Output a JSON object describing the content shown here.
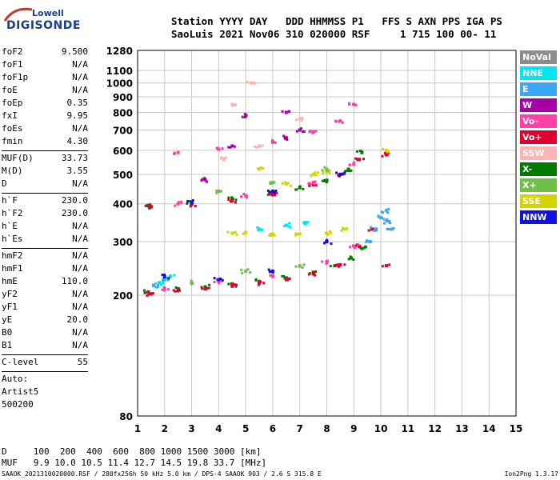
{
  "logo": {
    "line1": "Lowell",
    "line2": "DIGISONDE"
  },
  "header": {
    "line1": "Station YYYY DAY   DDD HHMMSS P1   FFS S AXN PPS IGA PS",
    "line2": "SaoLuis 2021 Nov06 310 020000 RSF     1 715 100 00- 11"
  },
  "params": [
    {
      "name": "foF2",
      "value": "9.500"
    },
    {
      "name": "foF1",
      "value": "N/A"
    },
    {
      "name": "foF1p",
      "value": "N/A"
    },
    {
      "name": "foE",
      "value": "N/A"
    },
    {
      "name": "foEp",
      "value": "0.35"
    },
    {
      "name": "fxI",
      "value": "9.95"
    },
    {
      "name": "foEs",
      "value": "N/A"
    },
    {
      "name": "fmin",
      "value": "4.30"
    },
    {
      "name": "MUF(D)",
      "value": "33.73"
    },
    {
      "name": "M(D)",
      "value": "3.55"
    },
    {
      "name": "D",
      "value": "N/A"
    },
    {
      "name": "h`F",
      "value": "230.0"
    },
    {
      "name": "h`F2",
      "value": "230.0"
    },
    {
      "name": "h`E",
      "value": "N/A"
    },
    {
      "name": "h`Es",
      "value": "N/A"
    },
    {
      "name": "hmF2",
      "value": "N/A"
    },
    {
      "name": "hmF1",
      "value": "N/A"
    },
    {
      "name": "hmE",
      "value": "110.0"
    },
    {
      "name": "yF2",
      "value": "N/A"
    },
    {
      "name": "yF1",
      "value": "N/A"
    },
    {
      "name": "yE",
      "value": "20.0"
    },
    {
      "name": "B0",
      "value": "N/A"
    },
    {
      "name": "B1",
      "value": "N/A"
    },
    {
      "name": "C-level",
      "value": "55"
    }
  ],
  "extra_lines": [
    "Auto:",
    "Artist5",
    "500200"
  ],
  "legend": [
    {
      "label": "NoVal",
      "color": "#8c8c8c"
    },
    {
      "label": "NNE",
      "color": "#00e5ee"
    },
    {
      "label": "E",
      "color": "#3ba8f5"
    },
    {
      "label": "W",
      "color": "#a600a6"
    },
    {
      "label": "Vo-",
      "color": "#ff3fa5"
    },
    {
      "label": "Vo+",
      "color": "#e00030"
    },
    {
      "label": "SSW",
      "color": "#ffb3b3"
    },
    {
      "label": "X-",
      "color": "#007a00"
    },
    {
      "label": "X+",
      "color": "#6fbf4a"
    },
    {
      "label": "SSE",
      "color": "#d4d400"
    },
    {
      "label": "NNW",
      "color": "#1010e0"
    }
  ],
  "footer": {
    "line1": "D     100  200  400  600  800 1000 1500 3000 [km]",
    "line2": "MUF   9.9 10.0 10.5 11.4 12.7 14.5 19.8 33.7 [MHz]",
    "left": "SAAOK_2021310020000.RSF / 280fx256h 50 kHz 5.0 km / DPS-4 SAAOK 903 / 2.6 S 315.8 E",
    "right": "Ion2Png 1.3.17"
  },
  "chart_data": {
    "type": "scatter",
    "xlabel": "",
    "ylabel": "",
    "xlim": [
      1,
      15
    ],
    "ylim": [
      80,
      1280
    ],
    "y_scale": "log",
    "x_ticks": [
      1,
      2,
      3,
      4,
      5,
      6,
      7,
      8,
      9,
      10,
      11,
      12,
      13,
      14,
      15
    ],
    "y_ticks": [
      80,
      200,
      300,
      400,
      500,
      600,
      700,
      800,
      900,
      1000,
      1100,
      1280
    ],
    "grid": true,
    "series": [
      {
        "name": "X-",
        "color": "#007a00",
        "points": [
          [
            1.4,
            205
          ],
          [
            2.5,
            210
          ],
          [
            3.5,
            213
          ],
          [
            4.5,
            218
          ],
          [
            5.5,
            222
          ],
          [
            6.5,
            228
          ],
          [
            7.5,
            238
          ],
          [
            8.3,
            250
          ],
          [
            8.9,
            265
          ],
          [
            9.3,
            285
          ],
          [
            1.4,
            395
          ],
          [
            3,
            402
          ],
          [
            4.5,
            415
          ],
          [
            6,
            433
          ],
          [
            7,
            452
          ],
          [
            8,
            478
          ],
          [
            8.8,
            520
          ],
          [
            9.3,
            590
          ]
        ]
      },
      {
        "name": "Vo+",
        "color": "#e00030",
        "points": [
          [
            1.5,
            202
          ],
          [
            2.5,
            207
          ],
          [
            3.5,
            210
          ],
          [
            4.5,
            214
          ],
          [
            5.5,
            219
          ],
          [
            6.5,
            225
          ],
          [
            7.5,
            235
          ],
          [
            8.5,
            252
          ],
          [
            9.2,
            290
          ],
          [
            9.7,
            330
          ],
          [
            1.5,
            392
          ],
          [
            3,
            398
          ],
          [
            4.5,
            410
          ],
          [
            6,
            428
          ],
          [
            7.5,
            462
          ],
          [
            8.5,
            500
          ],
          [
            9.2,
            560
          ],
          [
            10.2,
            250
          ],
          [
            10.2,
            580
          ]
        ]
      },
      {
        "name": "Vo-",
        "color": "#ff3fa5",
        "points": [
          [
            2,
            210
          ],
          [
            4,
            222
          ],
          [
            6,
            232
          ],
          [
            8,
            258
          ],
          [
            9,
            290
          ],
          [
            2.5,
            400
          ],
          [
            5,
            425
          ],
          [
            7.5,
            470
          ],
          [
            9,
            540
          ],
          [
            2.5,
            590
          ],
          [
            4,
            605
          ],
          [
            6,
            640
          ],
          [
            7.5,
            690
          ],
          [
            8.5,
            750
          ],
          [
            9,
            850
          ]
        ]
      },
      {
        "name": "E",
        "color": "#3ba8f5",
        "points": [
          [
            1.6,
            215
          ],
          [
            2,
            225
          ],
          [
            9.6,
            300
          ],
          [
            9.8,
            330
          ],
          [
            10,
            360
          ],
          [
            10.2,
            380
          ],
          [
            10.3,
            350
          ],
          [
            10.4,
            330
          ]
        ]
      },
      {
        "name": "NNE",
        "color": "#00e5ee",
        "points": [
          [
            1.8,
            220
          ],
          [
            2.2,
            230
          ],
          [
            5.5,
            330
          ],
          [
            6.5,
            340
          ],
          [
            7.2,
            345
          ]
        ]
      },
      {
        "name": "SSE",
        "color": "#d4d400",
        "points": [
          [
            4.5,
            320
          ],
          [
            5,
            322
          ],
          [
            6,
            318
          ],
          [
            7,
            318
          ],
          [
            8,
            320
          ],
          [
            8.7,
            330
          ],
          [
            5.5,
            520
          ],
          [
            6.5,
            465
          ],
          [
            7.5,
            500
          ],
          [
            8,
            510
          ],
          [
            10.2,
            600
          ]
        ]
      },
      {
        "name": "W",
        "color": "#a600a6",
        "points": [
          [
            3.5,
            480
          ],
          [
            4.5,
            620
          ],
          [
            6.5,
            660
          ],
          [
            7,
            700
          ],
          [
            5,
            780
          ],
          [
            6.5,
            800
          ]
        ]
      },
      {
        "name": "SSW",
        "color": "#ffb3b3",
        "points": [
          [
            4.2,
            560
          ],
          [
            5.5,
            620
          ],
          [
            7,
            760
          ],
          [
            4.5,
            850
          ],
          [
            5.2,
            1000
          ]
        ]
      },
      {
        "name": "X+",
        "color": "#6fbf4a",
        "points": [
          [
            3,
            220
          ],
          [
            5,
            240
          ],
          [
            7,
            250
          ],
          [
            4,
            440
          ],
          [
            6,
            470
          ],
          [
            8,
            520
          ]
        ]
      },
      {
        "name": "NNW",
        "color": "#1010e0",
        "points": [
          [
            2,
            230
          ],
          [
            4,
            225
          ],
          [
            6,
            240
          ],
          [
            8,
            300
          ],
          [
            3,
            405
          ],
          [
            6,
            440
          ],
          [
            8.5,
            500
          ]
        ]
      }
    ]
  }
}
